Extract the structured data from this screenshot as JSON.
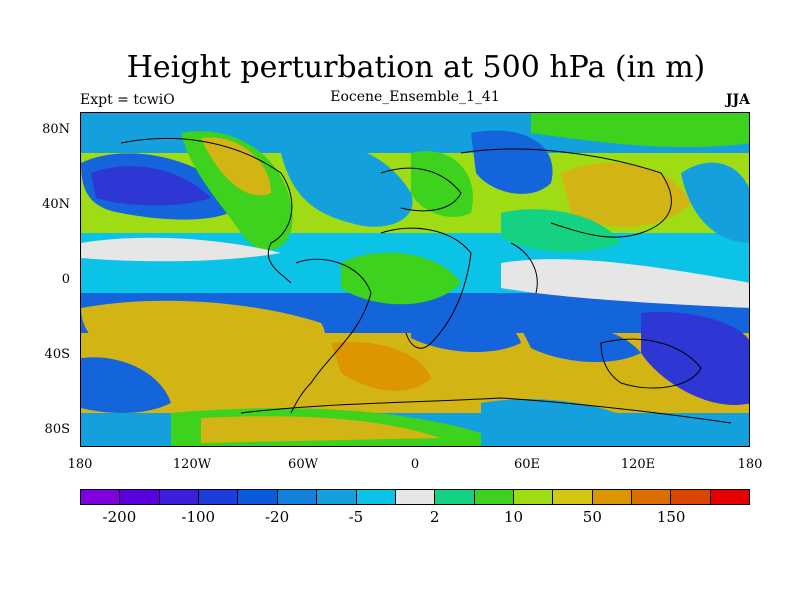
{
  "title": "Height perturbation at 500 hPa (in m)",
  "subtitle_left": "Expt = tcwiO",
  "subtitle_center": "Eocene_Ensemble_1_41",
  "subtitle_right": "JJA",
  "lat_ticks": [
    "80N",
    "40N",
    "0",
    "40S",
    "80S"
  ],
  "lon_ticks": [
    "180",
    "120W",
    "60W",
    "0",
    "60E",
    "120E",
    "180"
  ],
  "colorbar": {
    "colors": [
      "#7f00dc",
      "#5a00dc",
      "#3c1edc",
      "#1e3cdc",
      "#0a5adc",
      "#1482dc",
      "#14a0dc",
      "#0ac3e6",
      "#e6e6e6",
      "#14d282",
      "#3cd21e",
      "#a0dc14",
      "#d2c814",
      "#dc9600",
      "#dc6e00",
      "#dc4600",
      "#e60000"
    ],
    "labels": [
      "-200",
      "-100",
      "-20",
      "-5",
      "2",
      "10",
      "50",
      "150"
    ]
  },
  "map_regions": {
    "colors": {
      "deep_low": "#2e36d4",
      "low": "#1464dc",
      "mid_low": "#14a0dc",
      "weak_low": "#0ac3e6",
      "neutral": "#e6e6e6",
      "weak_high": "#14d282",
      "mid_high": "#3cd21e",
      "high": "#a0dc14",
      "strong_high": "#d2b414",
      "very_high": "#dc9600"
    }
  }
}
